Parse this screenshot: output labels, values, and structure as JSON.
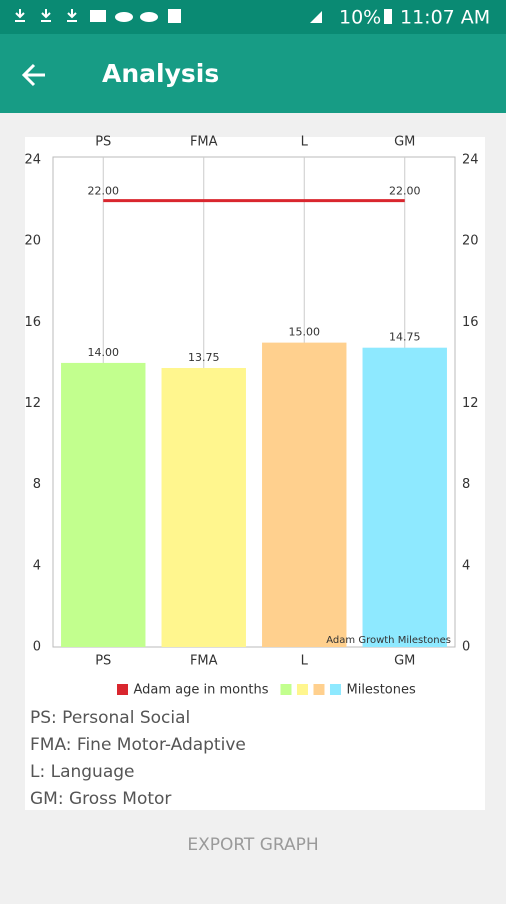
{
  "status_bar": {
    "battery": "10%",
    "time": "11:07 AM"
  },
  "app_bar": {
    "title": "Analysis"
  },
  "chart_data": {
    "type": "bar",
    "categories": [
      "PS",
      "FMA",
      "L",
      "GM"
    ],
    "series": [
      {
        "name": "Milestones",
        "type": "bar",
        "colors": [
          "#c2ff8e",
          "#fff68e",
          "#ffd08e",
          "#8ee9ff"
        ],
        "values": [
          14,
          13.75,
          15,
          14.75
        ],
        "value_labels": [
          "14.00",
          "13.75",
          "15.00",
          "14.75"
        ]
      },
      {
        "name": "Adam age in months",
        "type": "line",
        "color": "#d9262e",
        "values": [
          22,
          22,
          22,
          22
        ],
        "value_labels": [
          "22.00",
          null,
          null,
          "22.00"
        ]
      }
    ],
    "ylim": [
      0,
      24
    ],
    "yticks": [
      0,
      4,
      8,
      12,
      16,
      20,
      24
    ],
    "y2lim": [
      0,
      24
    ],
    "y2ticks": [
      0,
      4,
      8,
      12,
      16,
      20,
      24
    ],
    "description": "Adam Growth Milestones",
    "grid": true
  },
  "notes": [
    "PS: Personal Social",
    "FMA: Fine Motor-Adaptive",
    "L: Language",
    "GM: Gross Motor"
  ],
  "button": {
    "label": "EXPORT GRAPH"
  }
}
